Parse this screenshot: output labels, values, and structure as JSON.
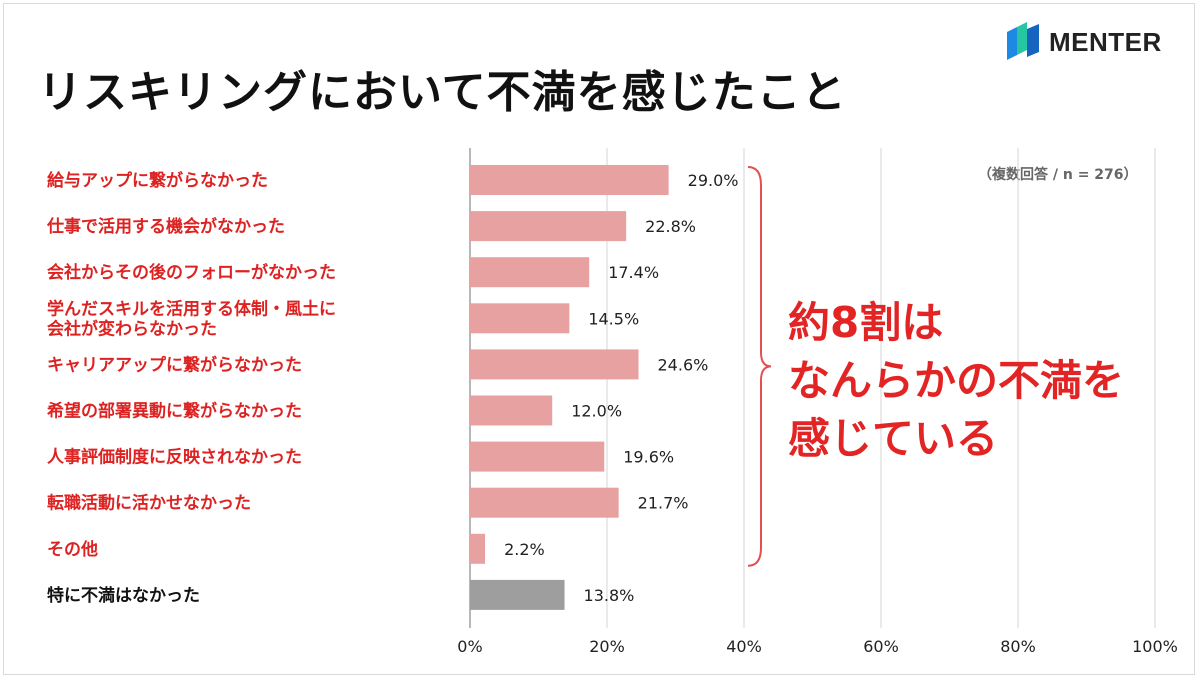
{
  "title": "リスキリングにおいて不満を感じたこと",
  "logo": {
    "text": "MENTER",
    "icon": "menter-logo-icon"
  },
  "note": "（複数回答 / n = 276）",
  "callout": {
    "lines": [
      "約8割は",
      "なんらかの不満を",
      "感じている"
    ],
    "color": "#e32424"
  },
  "colors": {
    "bar_main": "#e8a1a1",
    "bar_other": "#9e9e9e",
    "label_main": "#dd2222",
    "label_other": "#111111",
    "bracket": "#e35050"
  },
  "chart_data": {
    "type": "bar",
    "orientation": "horizontal",
    "categories": [
      [
        "給与アップに繋がらなかった"
      ],
      [
        "仕事で活用する機会がなかった"
      ],
      [
        "会社からその後のフォローがなかった"
      ],
      [
        "学んだスキルを活用する体制・風土に",
        "会社が変わらなかった"
      ],
      [
        "キャリアアップに繋がらなかった"
      ],
      [
        "希望の部署異動に繋がらなかった"
      ],
      [
        "人事評価制度に反映されなかった"
      ],
      [
        "転職活動に活かせなかった"
      ],
      [
        "その他"
      ],
      [
        "特に不満はなかった"
      ]
    ],
    "values": [
      29.0,
      22.8,
      17.4,
      14.5,
      24.6,
      12.0,
      19.6,
      21.7,
      2.2,
      13.8
    ],
    "value_labels": [
      "29.0%",
      "22.8%",
      "17.4%",
      "14.5%",
      "24.6%",
      "12.0%",
      "19.6%",
      "21.7%",
      "2.2%",
      "13.8%"
    ],
    "highlight_gray_index": 9,
    "xlim": [
      0,
      100
    ],
    "ticks": [
      0,
      20,
      40,
      60,
      80,
      100
    ],
    "tick_labels": [
      "0%",
      "20%",
      "40%",
      "60%",
      "80%",
      "100%"
    ],
    "grid": true,
    "bracket_span": [
      0,
      8
    ]
  }
}
